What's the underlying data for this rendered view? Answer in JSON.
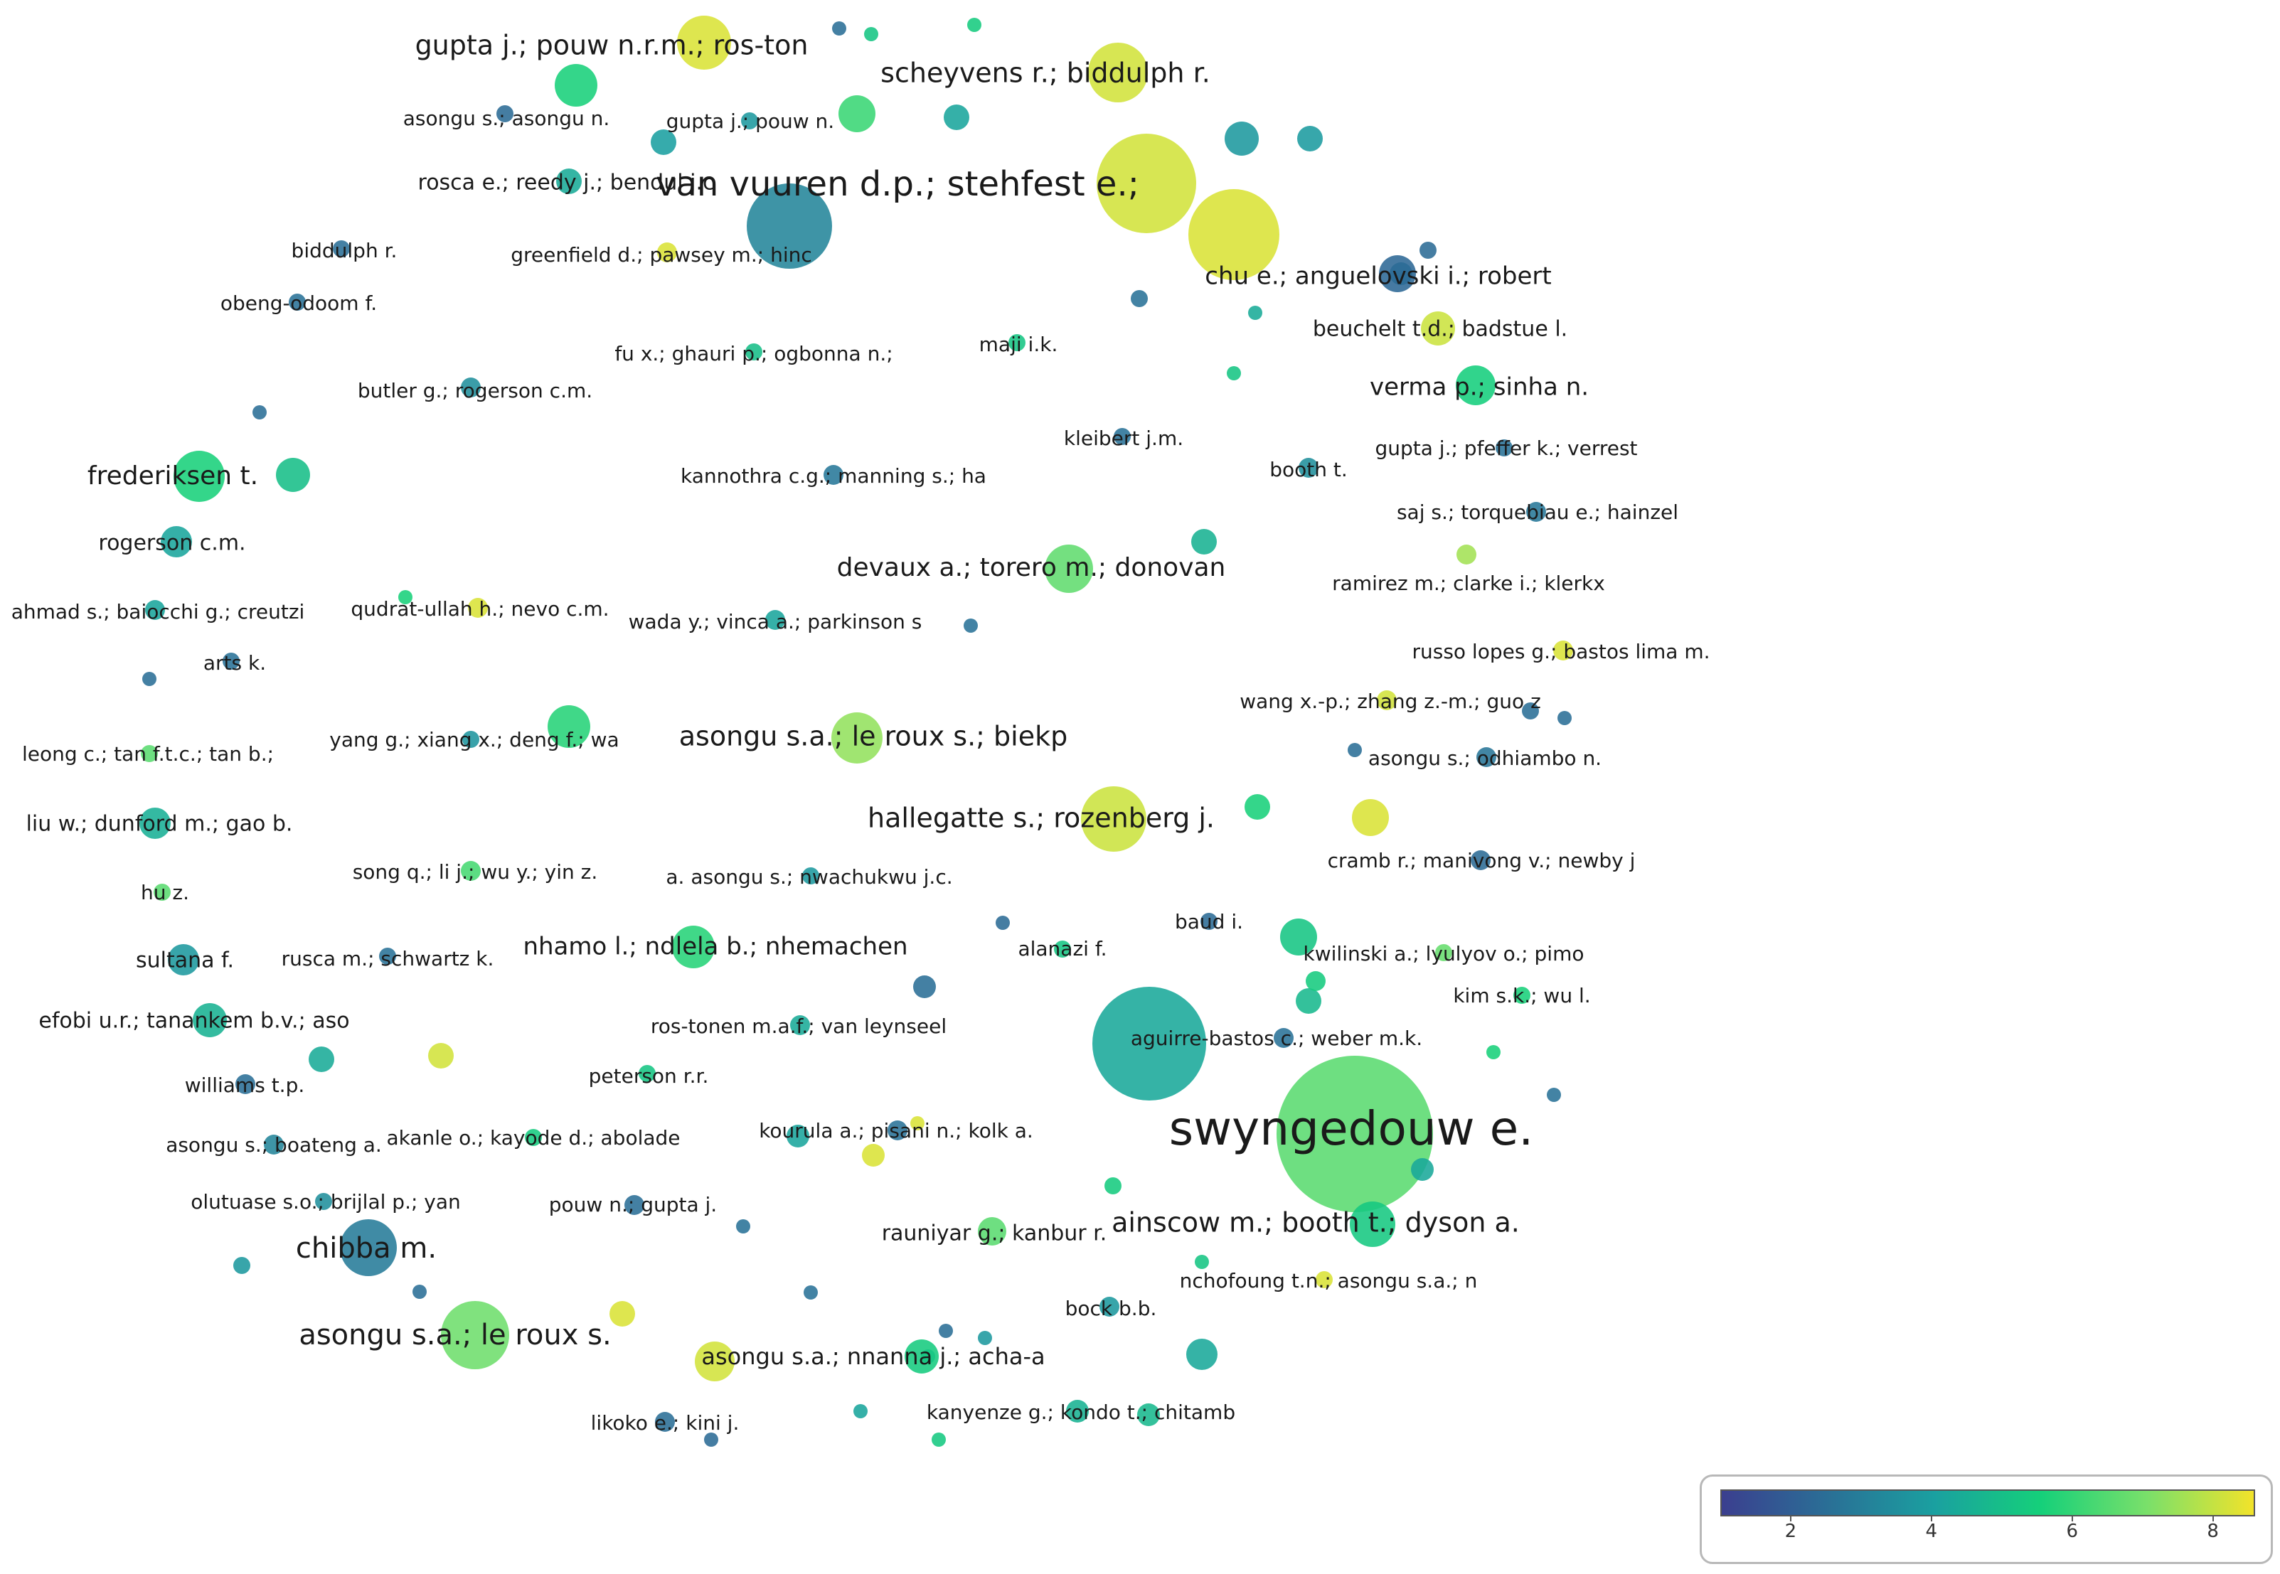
{
  "legend": {
    "ticks": [
      "2",
      "4",
      "6",
      "8"
    ],
    "min": 1.0,
    "max": 8.6,
    "colors": [
      "#3b3f8f",
      "#2a6f96",
      "#1aa0a0",
      "#15d07a",
      "#7ae06a",
      "#f2e32a"
    ]
  },
  "nodes": [
    {
      "label": "swyngedouw e.",
      "w": 38,
      "v": 6.6,
      "big": true
    },
    {
      "label": "van vuuren d.p.; stehfest e.;",
      "w": 28,
      "v": 8.2,
      "big": true
    },
    {
      "label": "",
      "w": 25,
      "v": 4.3
    },
    {
      "label": "",
      "w": 20,
      "v": 3.2
    },
    {
      "label": "",
      "w": 22,
      "v": 8.3
    },
    {
      "label": "asongu s.a.; le roux s.",
      "w": 16,
      "v": 6.9
    },
    {
      "label": "chibba m.",
      "w": 13,
      "v": 2.9
    },
    {
      "label": "ainscow m.; booth t.; dyson a.",
      "w": 11,
      "v": 5.3
    },
    {
      "label": "hallegatte s.; rozenberg j.",
      "w": 12,
      "v": 8.1
    },
    {
      "label": "scheyvens r.; biddulph r.",
      "w": 12,
      "v": 8.2
    },
    {
      "label": "gupta j.; pouw n.r.m.; ros-ton",
      "w": 11,
      "v": 8.3
    },
    {
      "label": "frederiksen t.",
      "w": 11,
      "v": 5.6
    },
    {
      "label": "asongu s.a.; le roux s.; biekp",
      "w": 10,
      "v": 7.4
    },
    {
      "label": "devaux a.; torero m.; donovan",
      "w": 9,
      "v": 6.7
    },
    {
      "label": "nhamo l.; ndlela b.; nhemachen",
      "w": 8,
      "v": 5.8
    },
    {
      "label": "verma p.; sinha n.",
      "w": 8,
      "v": 5.5
    },
    {
      "label": "chu e.; anguelovski i.; robert",
      "w": 7,
      "v": 2.3
    },
    {
      "label": "asongu s.a.; nnanna j.; acha-a",
      "w": 7,
      "v": 5.4
    },
    {
      "label": "",
      "w": 8,
      "v": 5.6
    },
    {
      "label": "",
      "w": 8,
      "v": 6.1
    },
    {
      "label": "",
      "w": 7,
      "v": 3.8
    },
    {
      "label": "",
      "w": 7,
      "v": 5.8
    },
    {
      "label": "efobi u.r.; tanankem b.v.; aso",
      "w": 7,
      "v": 4.6
    },
    {
      "label": "",
      "w": 7,
      "v": 5.2
    },
    {
      "label": "",
      "w": 7,
      "v": 8.2
    },
    {
      "label": "",
      "w": 7,
      "v": 4.3
    },
    {
      "label": "beuchelt t.d.; badstue l.",
      "w": 6,
      "v": 8.1
    },
    {
      "label": "",
      "w": 7,
      "v": 5.0
    },
    {
      "label": "",
      "w": 6,
      "v": 8.3
    },
    {
      "label": "liu w.; dunford m.; gao b.",
      "w": 6,
      "v": 4.5
    },
    {
      "label": "rogerson c.m.",
      "w": 6,
      "v": 4.2
    },
    {
      "label": "sultana f.",
      "w": 6,
      "v": 3.8
    },
    {
      "label": "rauniyar g.; kanbur r.",
      "w": 5,
      "v": 6.6
    },
    {
      "label": "",
      "w": 6,
      "v": 4.2
    },
    {
      "label": "",
      "w": 6,
      "v": 4.6
    },
    {
      "label": "",
      "w": 6,
      "v": 5.6
    },
    {
      "label": "",
      "w": 6,
      "v": 4.8
    },
    {
      "label": "",
      "w": 6,
      "v": 8.2
    },
    {
      "label": "",
      "w": 6,
      "v": 8.3
    },
    {
      "label": "",
      "w": 5,
      "v": 4.0
    },
    {
      "label": "rosca e.; reedy j.; bendul j.c",
      "w": 5,
      "v": 4.4
    },
    {
      "label": "",
      "w": 5,
      "v": 3.9
    },
    {
      "label": "",
      "w": 5,
      "v": 2.5
    },
    {
      "label": "",
      "w": 5,
      "v": 4.4
    },
    {
      "label": "",
      "w": 5,
      "v": 4.2
    },
    {
      "label": "",
      "w": 5,
      "v": 2.4
    },
    {
      "label": "",
      "w": 5,
      "v": 4.3
    },
    {
      "label": "",
      "w": 5,
      "v": 4.8
    },
    {
      "label": "kanyenze g.; kondo t.; chitamb",
      "w": 5,
      "v": 4.6
    },
    {
      "label": "",
      "w": 5,
      "v": 5.4
    },
    {
      "label": "",
      "w": 5,
      "v": 8.3
    },
    {
      "label": "williams t.p.",
      "w": 4,
      "v": 2.5
    },
    {
      "label": "asongu s.; boateng a.",
      "w": 4,
      "v": 3.2
    },
    {
      "label": "greenfield d.; pawsey m.; hinc",
      "w": 5,
      "v": 8.3
    },
    {
      "label": "ros-tonen m.a.f.; van leynseel",
      "w": 4,
      "v": 4.4
    },
    {
      "label": "kourula a.; pisani n.; kolk a.",
      "w": 4,
      "v": 2.6
    },
    {
      "label": "pouw n.; gupta j.",
      "w": 4,
      "v": 2.5
    },
    {
      "label": "cramb r.; manivong v.; newby j",
      "w": 4,
      "v": 2.4
    },
    {
      "label": "aguirre-bastos c.; weber m.k.",
      "w": 4,
      "v": 2.6
    },
    {
      "label": "song q.; li j.; wu y.; yin z.",
      "w": 4,
      "v": 6.3
    },
    {
      "label": "kannothra c.g.; manning s.; ha",
      "w": 4,
      "v": 2.8
    },
    {
      "label": "russo lopes g.; bastos lima m.",
      "w": 4,
      "v": 8.3
    },
    {
      "label": "asongu s.; odhiambo n.",
      "w": 4,
      "v": 2.7
    },
    {
      "label": "wang x.-p.; zhang z.-m.; guo z",
      "w": 4,
      "v": 8.2
    },
    {
      "label": "saj s.; torquebiau e.; hainzel",
      "w": 4,
      "v": 2.8
    },
    {
      "label": "ramirez m.; clarke i.; klerkx",
      "w": 4,
      "v": 7.6
    },
    {
      "label": "qudrat-ullah h.; nevo c.m.",
      "w": 4,
      "v": 8.3
    },
    {
      "label": "ahmad s.; baiocchi g.; creutzi",
      "w": 4,
      "v": 4.2
    },
    {
      "label": "wada y.; vinca a.; parkinson s",
      "w": 4,
      "v": 4.2
    },
    {
      "label": "butler g.; rogerson c.m.",
      "w": 4,
      "v": 3.5
    },
    {
      "label": "bock b.b.",
      "w": 4,
      "v": 3.8
    },
    {
      "label": "booth t.",
      "w": 4,
      "v": 3.5
    },
    {
      "label": "likoko e.; kini j.",
      "w": 4,
      "v": 2.5
    },
    {
      "label": "akanle o.; kayode d.; abolade",
      "w": 3,
      "v": 5.4
    },
    {
      "label": "nchofoung t.n.; asongu s.a.; n",
      "w": 3,
      "v": 8.3
    },
    {
      "label": "kwilinski a.; lyulyov o.; pimo",
      "w": 3,
      "v": 6.8
    },
    {
      "label": "asongu s.; asongu n.",
      "w": 3,
      "v": 2.4
    },
    {
      "label": "gupta j.; pouw n.",
      "w": 3,
      "v": 3.8
    },
    {
      "label": "kim s.k.; wu l.",
      "w": 3,
      "v": 5.6
    },
    {
      "label": "yang g.; xiang x.; deng f.; wa",
      "w": 3,
      "v": 3.7
    },
    {
      "label": "leong c.; tan f.t.c.; tan b.;",
      "w": 3,
      "v": 6.6
    },
    {
      "label": "a. asongu s.; nwachukwu j.c.",
      "w": 3,
      "v": 3.8
    },
    {
      "label": "olutuase s.o.; brijlal p.; yan",
      "w": 3,
      "v": 3.5
    },
    {
      "label": "rusca m.; schwartz k.",
      "w": 3,
      "v": 2.6
    },
    {
      "label": "peterson r.r.",
      "w": 3,
      "v": 5.2
    },
    {
      "label": "maji i.k.",
      "w": 3,
      "v": 5.2
    },
    {
      "label": "fu x.; ghauri p.; ogbonna n.;",
      "w": 3,
      "v": 5.0
    },
    {
      "label": "gupta j.; pfeffer k.; verrest",
      "w": 3,
      "v": 2.6
    },
    {
      "label": "arts k.",
      "w": 3,
      "v": 2.6
    },
    {
      "label": "hu z.",
      "w": 3,
      "v": 6.6
    },
    {
      "label": "baud i.",
      "w": 3,
      "v": 2.4
    },
    {
      "label": "alanazi f.",
      "w": 3,
      "v": 5.2
    },
    {
      "label": "obeng-odoom f.",
      "w": 3,
      "v": 2.6
    },
    {
      "label": "biddulph r.",
      "w": 3,
      "v": 2.5
    },
    {
      "label": "kleibert j.m.",
      "w": 3,
      "v": 2.6
    },
    {
      "label": "",
      "w": 4,
      "v": 2.5
    },
    {
      "label": "",
      "w": 4,
      "v": 2.4
    },
    {
      "label": "",
      "w": 4,
      "v": 2.6
    },
    {
      "label": "",
      "w": 4,
      "v": 5.2
    },
    {
      "label": "",
      "w": 4,
      "v": 3.8
    },
    {
      "label": "",
      "w": 4,
      "v": 5.4
    },
    {
      "label": "",
      "w": 3,
      "v": 2.5
    },
    {
      "label": "",
      "w": 3,
      "v": 2.5
    },
    {
      "label": "",
      "w": 3,
      "v": 2.5
    },
    {
      "label": "",
      "w": 3,
      "v": 2.5
    },
    {
      "label": "",
      "w": 3,
      "v": 2.6
    },
    {
      "label": "",
      "w": 3,
      "v": 2.4
    },
    {
      "label": "",
      "w": 3,
      "v": 2.6
    },
    {
      "label": "",
      "w": 3,
      "v": 2.5
    },
    {
      "label": "",
      "w": 3,
      "v": 4.2
    },
    {
      "label": "",
      "w": 3,
      "v": 8.3
    },
    {
      "label": "",
      "w": 3,
      "v": 5.2
    },
    {
      "label": "",
      "w": 3,
      "v": 5.6
    },
    {
      "label": "",
      "w": 3,
      "v": 3.8
    },
    {
      "label": "",
      "w": 3,
      "v": 2.4
    },
    {
      "label": "",
      "w": 3,
      "v": 5.3
    },
    {
      "label": "",
      "w": 3,
      "v": 2.6
    },
    {
      "label": "",
      "w": 3,
      "v": 5.2
    },
    {
      "label": "",
      "w": 3,
      "v": 2.5
    },
    {
      "label": "",
      "w": 3,
      "v": 4.4
    },
    {
      "label": "",
      "w": 3,
      "v": 2.6
    },
    {
      "label": "",
      "w": 3,
      "v": 5.6
    },
    {
      "label": "",
      "w": 3,
      "v": 5.2
    },
    {
      "label": "",
      "w": 3,
      "v": 2.5
    },
    {
      "label": "",
      "w": 3,
      "v": 5.4
    }
  ]
}
